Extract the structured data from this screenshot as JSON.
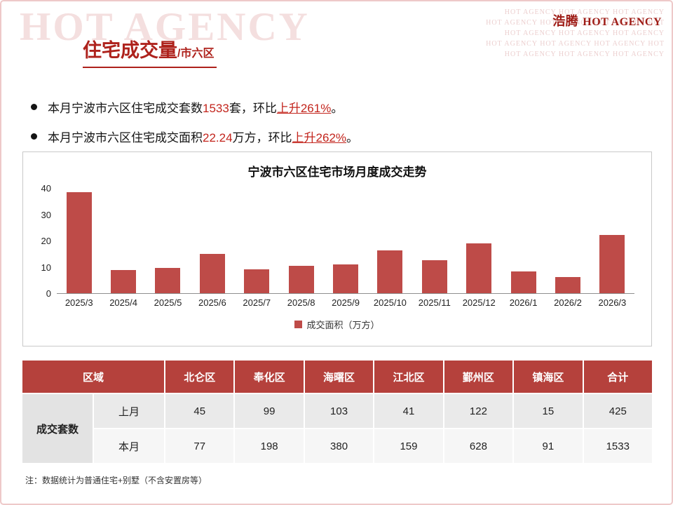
{
  "brand": {
    "cn": "浩腾",
    "en": "HOT AGENCY"
  },
  "watermarks": {
    "large": "HOT AGENCY",
    "small_lines": [
      "HOT AGENCY   HOT AGENCY   HOT AGENCY",
      "HOT AGENCY   HOT AGENCY   HOT AGENCY   HOT",
      "HOT AGENCY   HOT AGENCY   HOT AGENCY",
      "HOT AGENCY   HOT AGENCY   HOT AGENCY   HOT",
      "HOT AGENCY   HOT AGENCY   HOT AGENCY"
    ]
  },
  "header": {
    "title": "住宅成交量",
    "subtitle": "/市六区"
  },
  "bullets": [
    {
      "segments": [
        {
          "t": "本月宁波市六区住宅成交套数"
        },
        {
          "t": "1533",
          "s": "red"
        },
        {
          "t": "套，环比"
        },
        {
          "t": "上升261%",
          "s": "red u"
        },
        {
          "t": "。"
        }
      ]
    },
    {
      "segments": [
        {
          "t": "本月宁波市六区住宅成交面积"
        },
        {
          "t": "22.24",
          "s": "red"
        },
        {
          "t": "万方，环比"
        },
        {
          "t": "上升262%",
          "s": "red u"
        },
        {
          "t": "。"
        }
      ]
    }
  ],
  "chart_data": {
    "type": "bar",
    "title": "宁波市六区住宅市场月度成交走势",
    "categories": [
      "2025/3",
      "2025/4",
      "2025/5",
      "2025/6",
      "2025/7",
      "2025/8",
      "2025/9",
      "2025/10",
      "2025/11",
      "2025/12",
      "2026/1",
      "2026/2",
      "2026/3"
    ],
    "values": [
      38.3,
      8.8,
      9.6,
      15,
      9,
      10.4,
      11,
      16.2,
      12.6,
      19,
      8.2,
      6.2,
      22.24
    ],
    "ylim": [
      0,
      40
    ],
    "yticks": [
      0,
      10,
      20,
      30,
      40
    ],
    "legend": "成交面积（万方）",
    "bar_color": "#be4b48",
    "grid": false,
    "legend_position": "bottom"
  },
  "table": {
    "header": [
      "区域",
      "北仑区",
      "奉化区",
      "海曙区",
      "江北区",
      "鄞州区",
      "镇海区",
      "合计"
    ],
    "row_group_label": "成交套数",
    "rows": [
      {
        "label": "上月",
        "values": [
          "45",
          "99",
          "103",
          "41",
          "122",
          "15",
          "425"
        ]
      },
      {
        "label": "本月",
        "values": [
          "77",
          "198",
          "380",
          "159",
          "628",
          "91",
          "1533"
        ]
      }
    ]
  },
  "note": "注：数据统计为普通住宅+别墅（不含安置房等）",
  "colors": {
    "accent": "#ae221c",
    "number_red": "#c3251d",
    "bar": "#be4b48",
    "table_header_bg": "#b5413c",
    "watermark_pink": "#f4dfdf"
  }
}
